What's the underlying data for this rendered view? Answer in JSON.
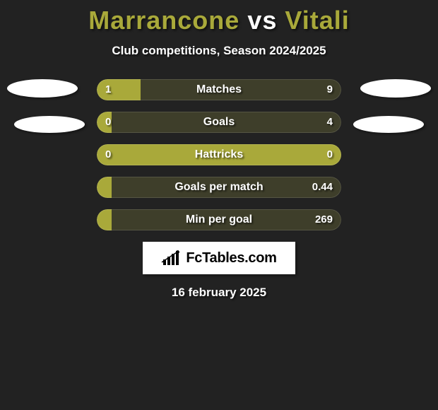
{
  "title": {
    "player1": "Marrancone",
    "vs": "vs",
    "player2": "Vitali"
  },
  "subtitle": "Club competitions, Season 2024/2025",
  "colors": {
    "left_fill": "#a9a93a",
    "right_fill": "#3e3e2a",
    "bg": "#222222"
  },
  "bars": [
    {
      "label": "Matches",
      "left": "1",
      "right": "9",
      "left_pct": 18,
      "right_pct": 82
    },
    {
      "label": "Goals",
      "left": "0",
      "right": "4",
      "left_pct": 6,
      "right_pct": 94
    },
    {
      "label": "Hattricks",
      "left": "0",
      "right": "0",
      "left_pct": 100,
      "right_pct": 0
    },
    {
      "label": "Goals per match",
      "left": "",
      "right": "0.44",
      "left_pct": 6,
      "right_pct": 94
    },
    {
      "label": "Min per goal",
      "left": "",
      "right": "269",
      "left_pct": 6,
      "right_pct": 94
    }
  ],
  "logo_text": "FcTables.com",
  "date": "16 february 2025"
}
